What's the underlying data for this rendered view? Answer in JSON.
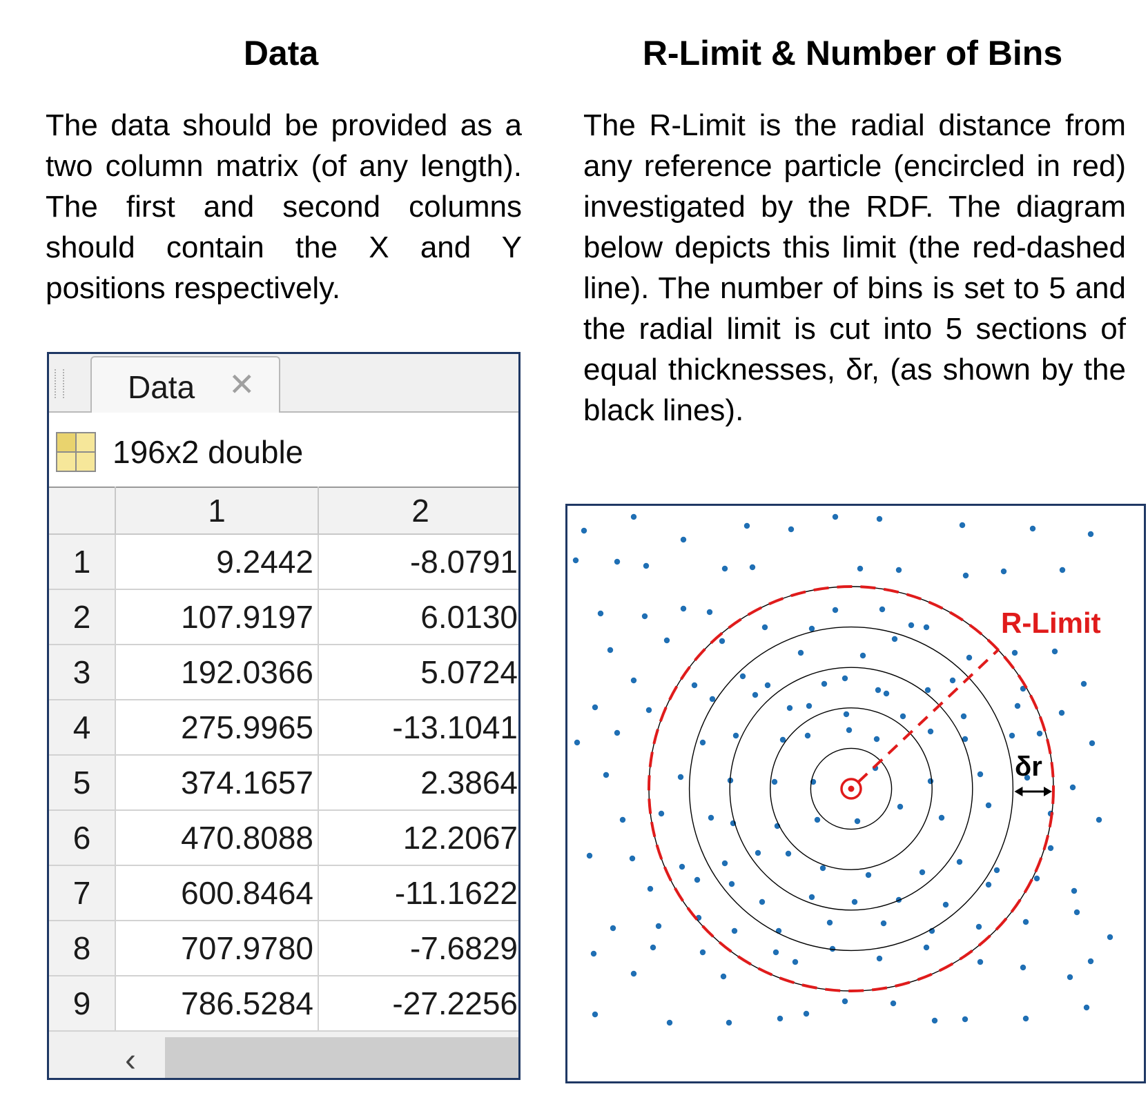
{
  "left": {
    "title": "Data",
    "paragraph": "The data should be provided as a two column matrix (of any length).  The first and second columns should contain the X and Y positions respectively."
  },
  "right": {
    "title": "R-Limit & Number of Bins",
    "paragraph": "The R-Limit is the radial distance from any reference particle (encircled in red) investigated by the RDF.  The diagram below depicts this limit (the red-dashed line).  The number of bins is set to 5 and the radial limit is cut into 5 sections of equal thicknesses, δr, (as shown by the black lines)."
  },
  "editor": {
    "tab_label": "Data",
    "tab_close_glyph": "✕",
    "info": "196x2 double",
    "columns": [
      "",
      "1",
      "2"
    ],
    "rows": [
      [
        "1",
        "9.2442",
        "-8.0791"
      ],
      [
        "2",
        "107.9197",
        "6.0130"
      ],
      [
        "3",
        "192.0366",
        "5.0724"
      ],
      [
        "4",
        "275.9965",
        "-13.1041"
      ],
      [
        "5",
        "374.1657",
        "2.3864"
      ],
      [
        "6",
        "470.8088",
        "12.2067"
      ],
      [
        "7",
        "600.8464",
        "-11.1622"
      ],
      [
        "8",
        "707.9780",
        "-7.6829"
      ],
      [
        "9",
        "786.5284",
        "-27.2256"
      ]
    ],
    "scroll_left_glyph": "‹"
  },
  "diagram": {
    "r_limit_label": "R-Limit",
    "delta_r_label": "δr",
    "num_bins": 5,
    "colors": {
      "particle": "#1f6fb4",
      "limit": "#e01b1b",
      "bins": "#000000"
    }
  }
}
